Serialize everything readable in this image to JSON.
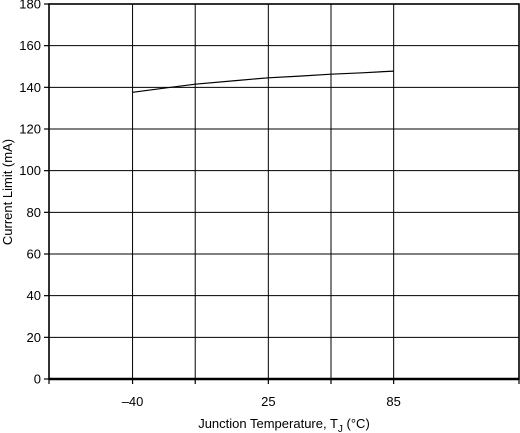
{
  "chart_data": {
    "type": "line",
    "xlabel_main": "Junction Temperature, T",
    "xlabel_sub": "J",
    "xlabel_unit": " (°C)",
    "ylabel": "Current Limit (mA)",
    "xlim": [
      -80,
      145
    ],
    "ylim": [
      0,
      180
    ],
    "x_ticks": [
      -80,
      -40,
      -10,
      25,
      55,
      85,
      145
    ],
    "x_tick_labels": [
      {
        "value": -40,
        "label": "–40"
      },
      {
        "value": 25,
        "label": "25"
      },
      {
        "value": 85,
        "label": "85"
      }
    ],
    "y_ticks": [
      0,
      20,
      40,
      60,
      80,
      100,
      120,
      140,
      160,
      180
    ],
    "y_tick_labels": [
      "0",
      "20",
      "40",
      "60",
      "80",
      "100",
      "120",
      "140",
      "160",
      "180"
    ],
    "grid": true,
    "series": [
      {
        "x": [
          -40,
          -25,
          -10,
          10,
          25,
          40,
          55,
          70,
          85
        ],
        "y": [
          137.6,
          139.6,
          141.5,
          143.3,
          144.6,
          145.4,
          146.3,
          147.0,
          147.8
        ]
      }
    ]
  }
}
